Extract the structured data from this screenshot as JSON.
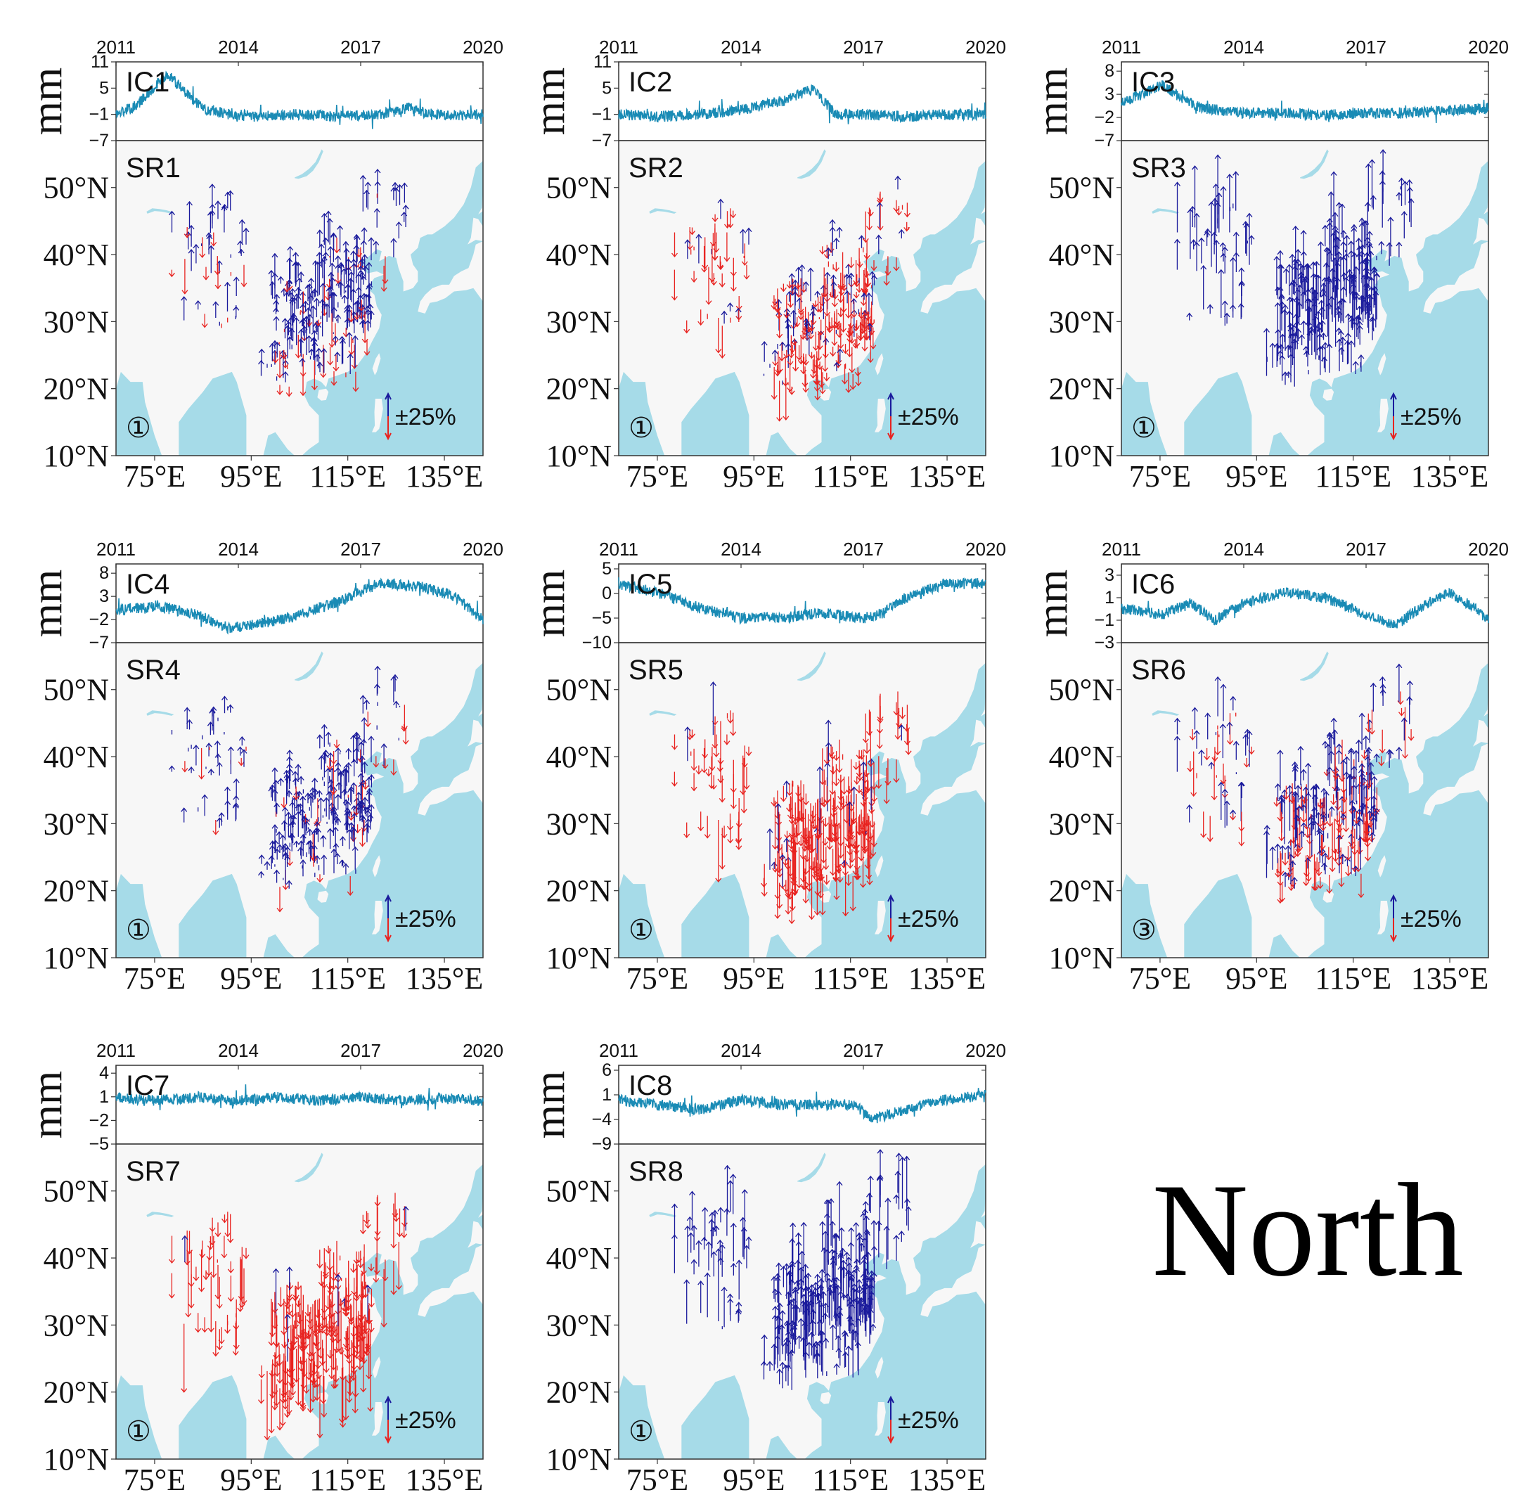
{
  "figure_label": "North",
  "colors": {
    "ts_line": "#1a8bb5",
    "sea": "#a6dbe8",
    "land": "#f7f7f7",
    "up_arrow": "#1a1a9c",
    "down_arrow": "#e8221f"
  },
  "chart_data": [
    {
      "type": "line",
      "ic_label": "IC1",
      "sr_label": "SR1",
      "ylabel": "mm",
      "x_ticks": [
        "2011",
        "2014",
        "2017",
        "2020"
      ],
      "y_ticks": [
        "11",
        "5",
        "−1",
        "−7"
      ],
      "ylim": [
        -7,
        11
      ],
      "series_points": [
        [
          2011.0,
          -1
        ],
        [
          2011.5,
          1
        ],
        [
          2012.0,
          6
        ],
        [
          2012.3,
          8
        ],
        [
          2012.7,
          4
        ],
        [
          2013.2,
          0
        ],
        [
          2013.8,
          -1
        ],
        [
          2014.5,
          -1.5
        ],
        [
          2015.5,
          -1
        ],
        [
          2016.5,
          -1.5
        ],
        [
          2017.5,
          -1
        ],
        [
          2018.2,
          0.5
        ],
        [
          2018.8,
          -1
        ],
        [
          2019.5,
          -1.2
        ],
        [
          2020.0,
          -1
        ]
      ],
      "map": {
        "number_marker": "①",
        "scale_label": "±25%",
        "lat_ticks": [
          "50°N",
          "40°N",
          "30°N",
          "20°N",
          "10°N"
        ],
        "lon_ticks": [
          "75°E",
          "95°E",
          "115°E",
          "135°E"
        ],
        "dominant_direction": "north",
        "mix": 0.2,
        "amplitude": 0.6
      }
    },
    {
      "type": "line",
      "ic_label": "IC2",
      "sr_label": "SR2",
      "ylabel": "mm",
      "x_ticks": [
        "2011",
        "2014",
        "2017",
        "2020"
      ],
      "y_ticks": [
        "11",
        "5",
        "−1",
        "−7"
      ],
      "ylim": [
        -7,
        11
      ],
      "series_points": [
        [
          2011.0,
          -1
        ],
        [
          2012.0,
          -1.5
        ],
        [
          2013.0,
          -1
        ],
        [
          2014.0,
          0
        ],
        [
          2015.0,
          2
        ],
        [
          2015.8,
          5
        ],
        [
          2016.3,
          -1
        ],
        [
          2017.0,
          -1
        ],
        [
          2018.0,
          -1.5
        ],
        [
          2019.0,
          -1
        ],
        [
          2020.0,
          -1
        ]
      ],
      "map": {
        "number_marker": "①",
        "scale_label": "±25%",
        "lat_ticks": [
          "50°N",
          "40°N",
          "30°N",
          "20°N",
          "10°N"
        ],
        "lon_ticks": [
          "75°E",
          "95°E",
          "115°E",
          "135°E"
        ],
        "dominant_direction": "south",
        "mix": 0.3,
        "amplitude": 0.6
      }
    },
    {
      "type": "line",
      "ic_label": "IC3",
      "sr_label": "SR3",
      "ylabel": "mm",
      "x_ticks": [
        "2011",
        "2014",
        "2017",
        "2020"
      ],
      "y_ticks": [
        "8",
        "3",
        "−2",
        "−7"
      ],
      "ylim": [
        -7,
        10
      ],
      "series_points": [
        [
          2011.0,
          1
        ],
        [
          2011.5,
          3
        ],
        [
          2012.0,
          5
        ],
        [
          2012.5,
          2
        ],
        [
          2013.0,
          0
        ],
        [
          2014.0,
          -1
        ],
        [
          2015.0,
          -1
        ],
        [
          2016.0,
          -1.5
        ],
        [
          2017.0,
          -1
        ],
        [
          2018.0,
          -1
        ],
        [
          2019.0,
          -0.5
        ],
        [
          2020.0,
          0
        ]
      ],
      "map": {
        "number_marker": "①",
        "scale_label": "±25%",
        "lat_ticks": [
          "50°N",
          "40°N",
          "30°N",
          "20°N",
          "10°N"
        ],
        "lon_ticks": [
          "75°E",
          "95°E",
          "115°E",
          "135°E"
        ],
        "dominant_direction": "north",
        "mix": 0.0,
        "amplitude": 1.1
      }
    },
    {
      "type": "line",
      "ic_label": "IC4",
      "sr_label": "SR4",
      "ylabel": "mm",
      "x_ticks": [
        "2011",
        "2014",
        "2017",
        "2020"
      ],
      "y_ticks": [
        "8",
        "3",
        "−2",
        "−7"
      ],
      "ylim": [
        -7,
        10
      ],
      "series_points": [
        [
          2011.0,
          0
        ],
        [
          2012.0,
          1
        ],
        [
          2013.0,
          -1
        ],
        [
          2013.8,
          -4
        ],
        [
          2014.5,
          -3
        ],
        [
          2015.5,
          -1
        ],
        [
          2016.5,
          2
        ],
        [
          2017.5,
          6
        ],
        [
          2018.5,
          5
        ],
        [
          2019.3,
          3
        ],
        [
          2020.0,
          -2
        ]
      ],
      "map": {
        "number_marker": "①",
        "scale_label": "±25%",
        "lat_ticks": [
          "50°N",
          "40°N",
          "30°N",
          "20°N",
          "10°N"
        ],
        "lon_ticks": [
          "75°E",
          "95°E",
          "115°E",
          "135°E"
        ],
        "dominant_direction": "north",
        "mix": 0.15,
        "amplitude": 0.5
      }
    },
    {
      "type": "line",
      "ic_label": "IC5",
      "sr_label": "SR5",
      "ylabel": "mm",
      "x_ticks": [
        "2011",
        "2014",
        "2017",
        "2020"
      ],
      "y_ticks": [
        "5",
        "0",
        "−5",
        "−10"
      ],
      "ylim": [
        -10,
        6
      ],
      "series_points": [
        [
          2011.0,
          2
        ],
        [
          2012.0,
          0
        ],
        [
          2013.0,
          -3
        ],
        [
          2014.0,
          -5
        ],
        [
          2015.0,
          -5
        ],
        [
          2016.0,
          -4
        ],
        [
          2017.0,
          -5
        ],
        [
          2017.5,
          -4
        ],
        [
          2018.0,
          -1
        ],
        [
          2019.0,
          2
        ],
        [
          2020.0,
          2
        ]
      ],
      "map": {
        "number_marker": "①",
        "scale_label": "±25%",
        "lat_ticks": [
          "50°N",
          "40°N",
          "30°N",
          "20°N",
          "10°N"
        ],
        "lon_ticks": [
          "75°E",
          "95°E",
          "115°E",
          "135°E"
        ],
        "dominant_direction": "south",
        "mix": 0.05,
        "amplitude": 1.0
      }
    },
    {
      "type": "line",
      "ic_label": "IC6",
      "sr_label": "SR6",
      "ylabel": "mm",
      "x_ticks": [
        "2011",
        "2014",
        "2017",
        "2020"
      ],
      "y_ticks": [
        "3",
        "1",
        "−1",
        "−3"
      ],
      "ylim": [
        -3,
        4
      ],
      "series_points": [
        [
          2011.0,
          0
        ],
        [
          2012.0,
          -0.5
        ],
        [
          2012.7,
          0.5
        ],
        [
          2013.3,
          -1
        ],
        [
          2014.0,
          0.5
        ],
        [
          2015.0,
          1.5
        ],
        [
          2016.0,
          1
        ],
        [
          2017.0,
          -0.5
        ],
        [
          2017.7,
          -1.5
        ],
        [
          2018.3,
          0
        ],
        [
          2019.0,
          1.5
        ],
        [
          2019.7,
          0
        ],
        [
          2020.0,
          -1
        ]
      ],
      "map": {
        "number_marker": "③",
        "scale_label": "±25%",
        "lat_ticks": [
          "50°N",
          "40°N",
          "30°N",
          "20°N",
          "10°N"
        ],
        "lon_ticks": [
          "75°E",
          "95°E",
          "115°E",
          "135°E"
        ],
        "dominant_direction": "north",
        "mix": 0.45,
        "amplitude": 0.8
      }
    },
    {
      "type": "line",
      "ic_label": "IC7",
      "sr_label": "SR7",
      "ylabel": "mm",
      "x_ticks": [
        "2011",
        "2014",
        "2017",
        "2020"
      ],
      "y_ticks": [
        "4",
        "1",
        "−2",
        "−5"
      ],
      "ylim": [
        -5,
        5
      ],
      "series_points": [
        [
          2011.0,
          1
        ],
        [
          2012.0,
          0.5
        ],
        [
          2013.0,
          1
        ],
        [
          2014.0,
          0.5
        ],
        [
          2015.0,
          1
        ],
        [
          2016.0,
          0.5
        ],
        [
          2017.0,
          1
        ],
        [
          2018.0,
          0.5
        ],
        [
          2019.0,
          0.8
        ],
        [
          2020.0,
          0.5
        ]
      ],
      "map": {
        "number_marker": "①",
        "scale_label": "±25%",
        "lat_ticks": [
          "50°N",
          "40°N",
          "30°N",
          "20°N",
          "10°N"
        ],
        "lon_ticks": [
          "75°E",
          "95°E",
          "115°E",
          "135°E"
        ],
        "dominant_direction": "south",
        "mix": 0.03,
        "amplitude": 1.1
      }
    },
    {
      "type": "line",
      "ic_label": "IC8",
      "sr_label": "SR8",
      "ylabel": "mm",
      "x_ticks": [
        "2011",
        "2014",
        "2017",
        "2020"
      ],
      "y_ticks": [
        "6",
        "1",
        "−4",
        "−9"
      ],
      "ylim": [
        -9,
        7
      ],
      "series_points": [
        [
          2011.0,
          0
        ],
        [
          2012.0,
          -1
        ],
        [
          2013.0,
          -2
        ],
        [
          2014.0,
          0
        ],
        [
          2015.0,
          -1
        ],
        [
          2016.0,
          -1
        ],
        [
          2016.8,
          -1
        ],
        [
          2017.2,
          -4
        ],
        [
          2018.0,
          -2
        ],
        [
          2019.0,
          0
        ],
        [
          2020.0,
          1
        ]
      ],
      "map": {
        "number_marker": "①",
        "scale_label": "±25%",
        "lat_ticks": [
          "50°N",
          "40°N",
          "30°N",
          "20°N",
          "10°N"
        ],
        "lon_ticks": [
          "75°E",
          "95°E",
          "115°E",
          "135°E"
        ],
        "dominant_direction": "north",
        "mix": 0.0,
        "amplitude": 1.1
      }
    }
  ]
}
